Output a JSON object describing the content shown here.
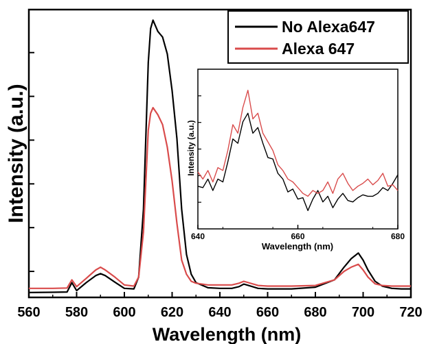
{
  "chart_data": [
    {
      "type": "line",
      "xlabel": "Wavelength (nm)",
      "ylabel": "Intensity (a.u.)",
      "xlim": [
        560,
        720
      ],
      "ylim": [
        0,
        100
      ],
      "x_ticks": [
        560,
        580,
        600,
        620,
        640,
        660,
        680,
        700,
        720
      ],
      "y_ticks_labeled": false,
      "y_tick_values": [
        8,
        23.5,
        39,
        54.5,
        70,
        85.5
      ],
      "legend_position": "top-right",
      "series": [
        {
          "name": "No Alexa647",
          "color": "#000000",
          "x": [
            560,
            570,
            576,
            578,
            580,
            584,
            588,
            590,
            592,
            596,
            600,
            604,
            606,
            608,
            610,
            611,
            612,
            614,
            616,
            618,
            620,
            622,
            624,
            626,
            628,
            630,
            635,
            640,
            645,
            648,
            650,
            652,
            656,
            660,
            670,
            680,
            688,
            692,
            695,
            698,
            700,
            702,
            705,
            708,
            712,
            716,
            720
          ],
          "y": [
            0.5,
            0.6,
            0.7,
            4,
            1.2,
            4,
            6.5,
            7.2,
            6.5,
            4.2,
            2,
            1.8,
            6,
            30,
            82,
            94,
            97,
            93,
            91,
            85,
            72,
            55,
            30,
            14,
            7,
            4,
            2.2,
            2,
            2,
            2.6,
            3.5,
            3,
            2,
            1.8,
            1.8,
            2.4,
            5,
            9.5,
            12.5,
            14.5,
            12,
            8.5,
            4.5,
            2.8,
            2,
            1.8,
            1.8
          ]
        },
        {
          "name": "Alexa 647",
          "color": "#d94b4b",
          "x": [
            560,
            570,
            576,
            578,
            580,
            584,
            588,
            590,
            592,
            596,
            600,
            604,
            606,
            608,
            610,
            611,
            612,
            614,
            616,
            618,
            620,
            622,
            624,
            626,
            628,
            630,
            635,
            640,
            645,
            648,
            650,
            652,
            656,
            660,
            670,
            680,
            688,
            692,
            695,
            698,
            700,
            702,
            705,
            708,
            712,
            716,
            720
          ],
          "y": [
            2,
            2,
            2.1,
            5,
            2.6,
            5.5,
            8.5,
            9.5,
            8.5,
            6,
            3.2,
            2.8,
            6,
            22,
            58,
            64,
            66,
            63.5,
            60,
            52,
            40,
            25,
            12,
            7,
            4.5,
            3.8,
            3.2,
            3.2,
            3.2,
            3.8,
            4.5,
            4,
            3,
            2.8,
            2.8,
            3,
            5,
            8,
            9.5,
            10.5,
            8.5,
            6,
            3.6,
            3,
            2.8,
            2.8,
            2.8
          ]
        }
      ]
    },
    {
      "type": "line",
      "xlabel": "Wavelength (nm)",
      "ylabel": "Intensity (a.u.)",
      "xlim": [
        640,
        680
      ],
      "ylim": [
        0,
        100
      ],
      "x_ticks": [
        640,
        660,
        680
      ],
      "y_ticks_labeled": false,
      "series": [
        {
          "color": "#000000",
          "x": [
            640,
            641,
            642,
            643,
            644,
            645,
            646,
            647,
            648,
            649,
            650,
            651,
            652,
            653,
            654,
            655,
            656,
            657,
            658,
            659,
            660,
            661,
            662,
            663,
            664,
            665,
            666,
            667,
            668,
            669,
            670,
            671,
            672,
            673,
            674,
            675,
            676,
            677,
            678,
            679,
            680
          ],
          "y": [
            25,
            24,
            30,
            22,
            30,
            28,
            42,
            58,
            55,
            70,
            76,
            62,
            66,
            55,
            45,
            44,
            34,
            30,
            21,
            23,
            16,
            17,
            8,
            16,
            22,
            14,
            18,
            10,
            16,
            20,
            15,
            14,
            17,
            19,
            18,
            18,
            20,
            24,
            22,
            27,
            33
          ]
        },
        {
          "color": "#d94b4b",
          "x": [
            640,
            641,
            642,
            643,
            644,
            645,
            646,
            647,
            648,
            649,
            650,
            651,
            652,
            653,
            654,
            655,
            656,
            657,
            658,
            659,
            660,
            661,
            662,
            663,
            664,
            665,
            666,
            667,
            668,
            669,
            670,
            671,
            672,
            673,
            674,
            675,
            676,
            677,
            678,
            679,
            680
          ],
          "y": [
            35,
            30,
            36,
            28,
            38,
            36,
            50,
            68,
            62,
            80,
            92,
            72,
            76,
            62,
            56,
            50,
            40,
            36,
            30,
            28,
            24,
            20,
            18,
            22,
            20,
            22,
            28,
            20,
            30,
            34,
            27,
            22,
            25,
            27,
            30,
            26,
            29,
            34,
            25,
            26,
            22
          ]
        }
      ]
    }
  ]
}
